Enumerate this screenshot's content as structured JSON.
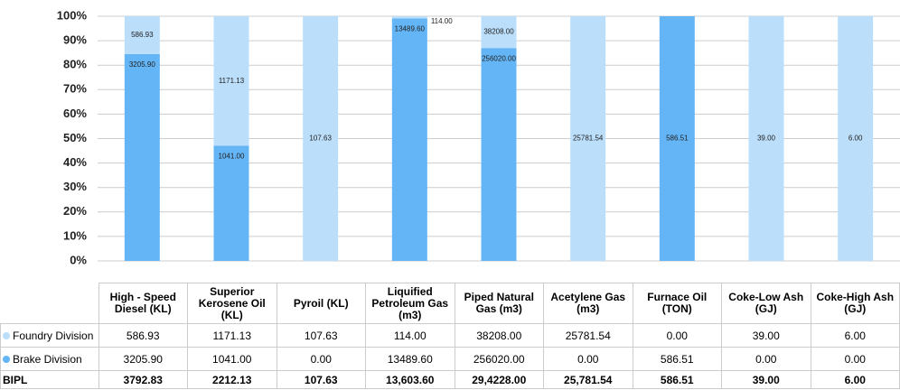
{
  "chart_data": {
    "type": "stacked_percent_bar",
    "categories": [
      "High - Speed Diesel (KL)",
      "Superior Kerosene Oil (KL)",
      "Pyroil (KL)",
      "Liquified Petroleum Gas (m3)",
      "Piped Natural Gas (m3)",
      "Acetylene Gas (m3)",
      "Furnace Oil (TON)",
      "Coke-Low Ash (GJ)",
      "Coke-High Ash (GJ)"
    ],
    "series": [
      {
        "name": "Foundry Division",
        "color": "#bbdefb",
        "values": [
          586.93,
          1171.13,
          107.63,
          114,
          38208,
          25781.54,
          0,
          39,
          6
        ],
        "value_labels": [
          "586.93",
          "1171.13",
          "107.63",
          "114.00",
          "38208.00",
          "25781.54",
          "0.00",
          "39.00",
          "6.00"
        ]
      },
      {
        "name": "Brake Division",
        "color": "#64b5f6",
        "values": [
          3205.9,
          1041,
          0,
          13489.6,
          256020,
          0,
          586.51,
          0,
          0
        ],
        "value_labels": [
          "3205.90",
          "1041.00",
          "0.00",
          "13489.60",
          "256020.00",
          "0.00",
          "586.51",
          "0.00",
          "0.00"
        ]
      }
    ],
    "total_row": {
      "name": "BIPL",
      "values": [
        "3792.83",
        "2212.13",
        "107.63",
        "13,603.60",
        "29,4228.00",
        "25,781.54",
        "586.51",
        "39.00",
        "6.00"
      ]
    },
    "ylim": [
      0,
      100
    ],
    "yticks": [
      {
        "value": 0,
        "label": "0%"
      },
      {
        "value": 10,
        "label": "10%"
      },
      {
        "value": 20,
        "label": "20%"
      },
      {
        "value": 30,
        "label": "30%"
      },
      {
        "value": 40,
        "label": "40%"
      },
      {
        "value": 50,
        "label": "50%"
      },
      {
        "value": 60,
        "label": "60%"
      },
      {
        "value": 70,
        "label": "70%"
      },
      {
        "value": 80,
        "label": "80%"
      },
      {
        "value": 90,
        "label": "90%"
      },
      {
        "value": 100,
        "label": "100%"
      }
    ],
    "grid": true
  }
}
